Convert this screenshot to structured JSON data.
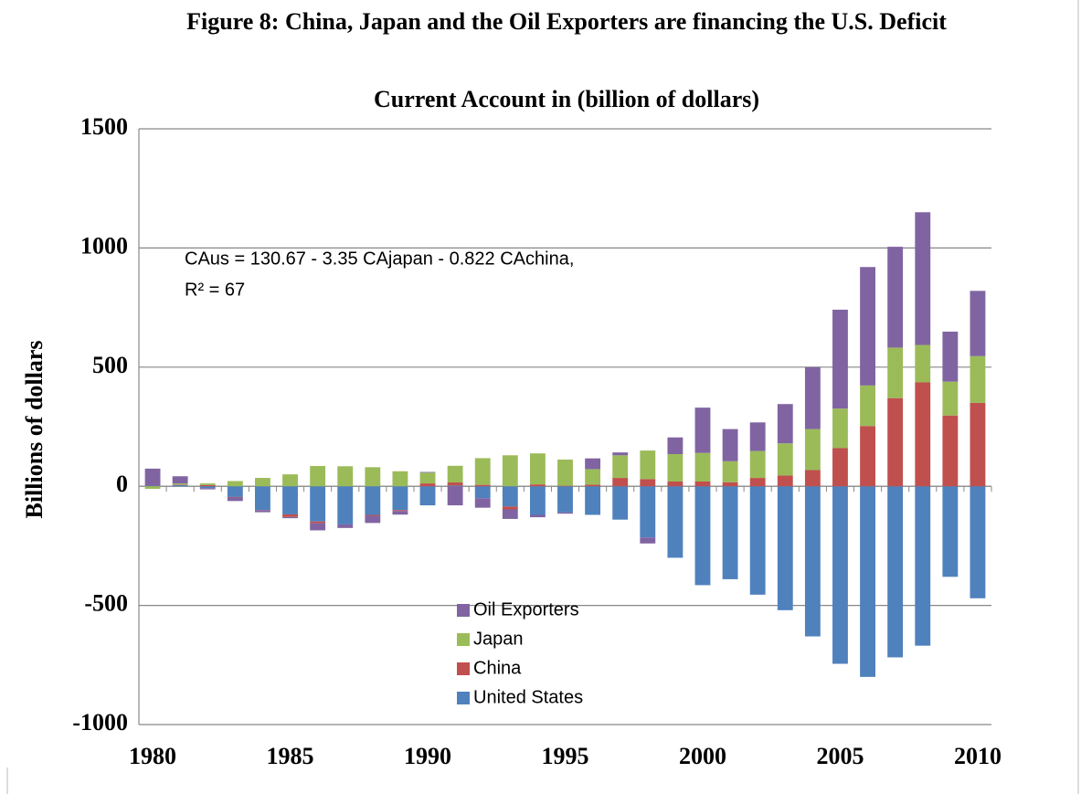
{
  "chart_data": {
    "type": "stacked_bar",
    "title": "Figure 8: China, Japan and the Oil Exporters are financing the U.S. Deficit",
    "subtitle": "Current Account in (billion of dollars)",
    "y_label": "Billions of dollars",
    "annotations": [
      "CAus = 130.67  - 3.35 CAjapan  -  0.822 CAchina,",
      "R² = 67"
    ],
    "categories": [
      "1980",
      null,
      null,
      null,
      null,
      "1985",
      null,
      null,
      null,
      null,
      "1990",
      null,
      null,
      null,
      null,
      "1995",
      null,
      null,
      null,
      null,
      "2000",
      null,
      null,
      null,
      null,
      "2005",
      null,
      null,
      null,
      null,
      "2010"
    ],
    "series": [
      {
        "name": "United States",
        "color": "#4f81bd",
        "values": [
          2,
          5,
          -8,
          -45,
          -100,
          -118,
          -148,
          -160,
          -120,
          -100,
          -80,
          3,
          -50,
          -85,
          -120,
          -110,
          -120,
          -140,
          -215,
          -300,
          -415,
          -390,
          -455,
          -520,
          -630,
          -745,
          -800,
          -718,
          -669,
          -380,
          -470
        ]
      },
      {
        "name": "China",
        "color": "#c0504d",
        "values": [
          0,
          2,
          5,
          -2,
          -1,
          -11,
          -7,
          0,
          -4,
          -4,
          12,
          13,
          6,
          -12,
          8,
          2,
          7,
          35,
          30,
          20,
          20,
          17,
          35,
          45,
          68,
          160,
          253,
          370,
          436,
          297,
          350
        ]
      },
      {
        "name": "Japan",
        "color": "#9bbb59",
        "values": [
          -11,
          5,
          7,
          22,
          35,
          50,
          85,
          84,
          80,
          63,
          45,
          70,
          112,
          130,
          130,
          110,
          65,
          95,
          120,
          115,
          120,
          88,
          113,
          135,
          172,
          166,
          170,
          212,
          157,
          142,
          196
        ]
      },
      {
        "name": "Oil Exporters",
        "color": "#8064a2",
        "values": [
          72,
          30,
          -5,
          -15,
          -8,
          -5,
          -30,
          -15,
          -30,
          -15,
          3,
          -80,
          -40,
          -40,
          -10,
          -5,
          45,
          12,
          -25,
          70,
          190,
          135,
          120,
          165,
          260,
          415,
          497,
          423,
          557,
          210,
          274
        ]
      }
    ],
    "ylim": [
      -1000,
      1500
    ],
    "yticks": [
      -1000,
      -500,
      0,
      500,
      1000,
      1500
    ],
    "grid": true
  }
}
